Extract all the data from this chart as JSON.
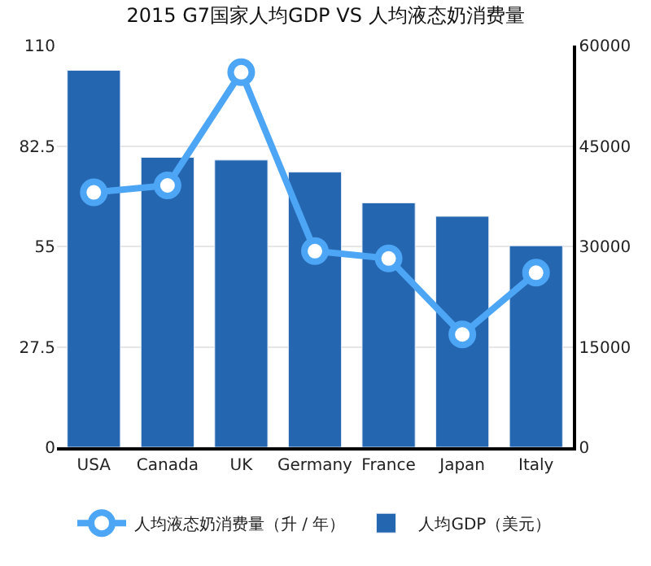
{
  "chart_data": {
    "type": "bar",
    "title": "2015 G7国家人均GDP VS 人均液态奶消费量",
    "categories": [
      "USA",
      "Canada",
      "UK",
      "Germany",
      "France",
      "Japan",
      "Italy"
    ],
    "series": [
      {
        "name": "人均液态奶消费量（升 / 年）",
        "type": "line",
        "color": "#4da6f5",
        "values": [
          69.8,
          71.7,
          102.7,
          53.7,
          51.7,
          30.9,
          47.8
        ]
      },
      {
        "name": "人均GDP（美元）",
        "axis": "y2",
        "color": "#2566b0",
        "values": [
          56300,
          43300,
          42900,
          41100,
          36500,
          34500,
          30100
        ]
      }
    ],
    "ylim": [
      0,
      110
    ],
    "yticks": [
      0,
      27.5,
      55,
      82.5,
      110
    ],
    "y2lim": [
      0,
      60000
    ],
    "y2ticks": [
      0,
      15000,
      30000,
      45000,
      60000
    ],
    "grid": "y",
    "legend": "bottom",
    "marker": "circle"
  }
}
